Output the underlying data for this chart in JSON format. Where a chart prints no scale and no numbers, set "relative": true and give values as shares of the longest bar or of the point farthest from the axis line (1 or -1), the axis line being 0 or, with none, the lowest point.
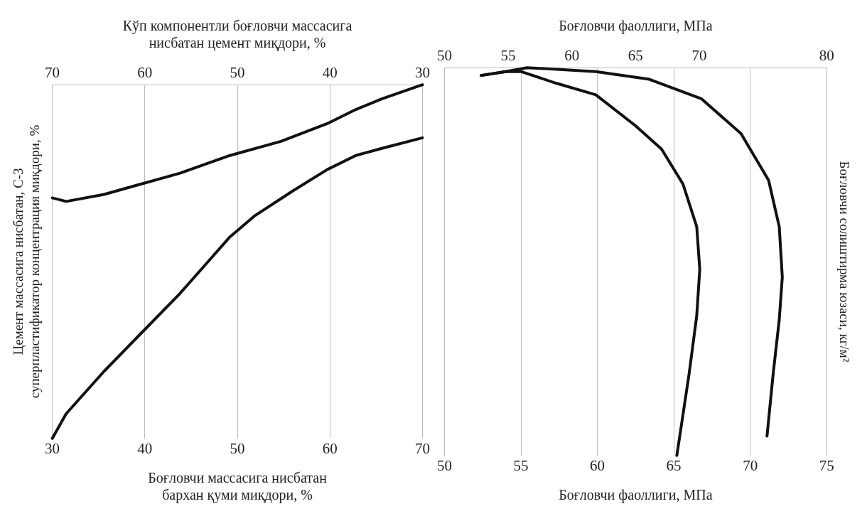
{
  "chart_data": [
    {
      "type": "line",
      "relative": true,
      "xlabel": "Боғловчи массасига нисбатан бархан қуми миқдори, %",
      "ylabel": "Цемент массасига нисбатан, С-3 суперпластификатор концентрация миқдори, %",
      "x2label": "Кўп компонентли боғловчи массасига нисбатан цемент миқдори, %",
      "xlim": [
        30,
        70
      ],
      "xticks": [
        30,
        40,
        50,
        60,
        70
      ],
      "x2lim": [
        70,
        30
      ],
      "x2ticks": [
        70,
        60,
        50,
        40,
        30
      ],
      "grid": "x",
      "tick_labels": "x",
      "marker": "none",
      "line_style": "solid",
      "series": [
        {
          "color": "#111111",
          "x": [
            30,
            31.5,
            35.6,
            39.7,
            43.8,
            49.2,
            54.7,
            59.7,
            62.8,
            65.6,
            70
          ],
          "values": [
            0.68,
            0.67,
            0.69,
            0.72,
            0.75,
            0.8,
            0.84,
            0.89,
            0.93,
            0.96,
            1
          ]
        },
        {
          "color": "#111111",
          "x": [
            30,
            31.5,
            35.6,
            39.7,
            43.8,
            46.5,
            49.2,
            51.9,
            56,
            59.7,
            62.8,
            65.6,
            70
          ],
          "values": [
            0,
            0.07,
            0.19,
            0.3,
            0.41,
            0.49,
            0.57,
            0.63,
            0.7,
            0.76,
            0.8,
            0.82,
            0.85
          ]
        }
      ]
    },
    {
      "type": "line",
      "relative": true,
      "xlabel": "Боғловчи фаоллиги, МПа",
      "ylabel": "Боғловчи солиштирма юзаси, кг/м²",
      "x2label": "Боғловчи фаоллиги, МПа",
      "xlim": [
        50,
        75
      ],
      "xticks": [
        50,
        55,
        60,
        65,
        70,
        75
      ],
      "x2lim": [
        50,
        80
      ],
      "x2ticks": [
        50,
        55,
        60,
        65,
        70,
        80
      ],
      "grid": "x",
      "tick_labels": "x",
      "marker": "none",
      "line_style": "solid",
      "series": [
        {
          "color": "#111111",
          "x": [
            52.4,
            54,
            55,
            57.3,
            59.9,
            62.5,
            64.2,
            65.6,
            66.5,
            66.7,
            66.5,
            66,
            65.2
          ],
          "values": [
            0.98,
            0.99,
            0.99,
            0.96,
            0.93,
            0.85,
            0.79,
            0.7,
            0.59,
            0.48,
            0.36,
            0.21,
            0
          ]
        },
        {
          "color": "#111111",
          "x": [
            52.4,
            54,
            55.4,
            59.9,
            63.4,
            66.8,
            69.4,
            71.2,
            71.9,
            72.1,
            71.9,
            71.5,
            71.1
          ],
          "values": [
            0.98,
            0.99,
            1,
            0.99,
            0.97,
            0.92,
            0.83,
            0.71,
            0.59,
            0.46,
            0.35,
            0.21,
            0.05
          ]
        }
      ]
    }
  ]
}
